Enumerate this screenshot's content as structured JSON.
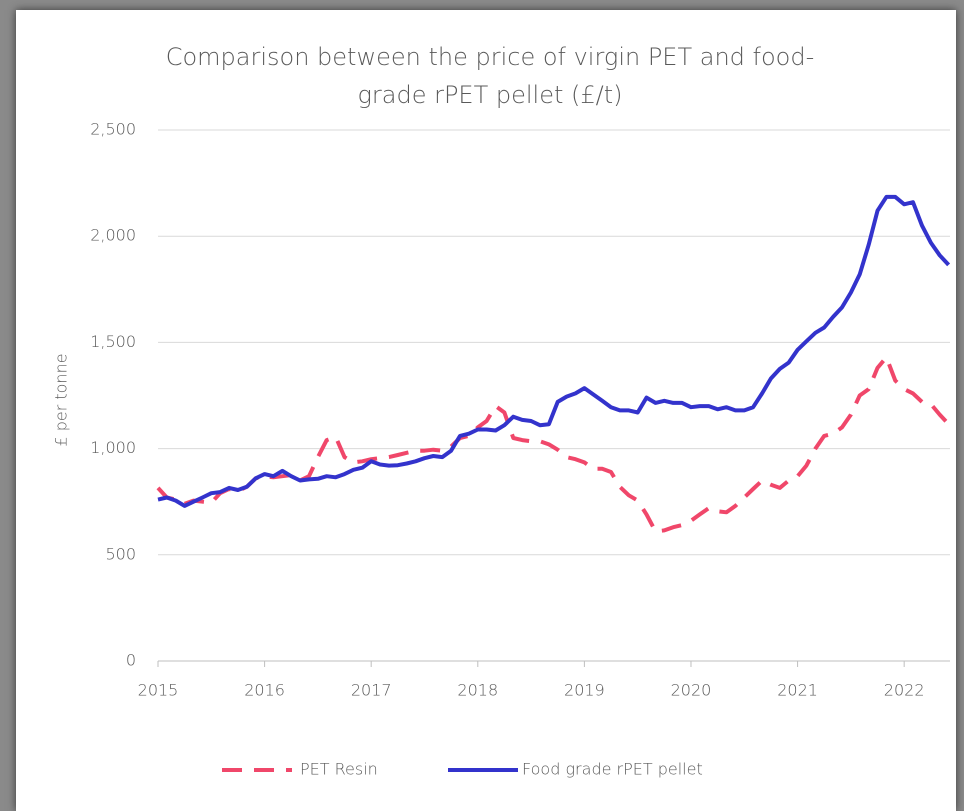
{
  "chart_data": {
    "type": "line",
    "title": [
      "Comparison between the price of virgin PET and food-",
      "grade rPET pellet (£/t)"
    ],
    "y_label": "£ per tonne",
    "x": [
      2015,
      2015.083,
      2015.167,
      2015.25,
      2015.333,
      2015.417,
      2015.5,
      2015.583,
      2015.667,
      2015.75,
      2015.833,
      2015.917,
      2016,
      2016.083,
      2016.167,
      2016.25,
      2016.333,
      2016.417,
      2016.5,
      2016.583,
      2016.667,
      2016.75,
      2016.833,
      2016.917,
      2017,
      2017.083,
      2017.167,
      2017.25,
      2017.333,
      2017.417,
      2017.5,
      2017.583,
      2017.667,
      2017.75,
      2017.833,
      2017.917,
      2018,
      2018.083,
      2018.167,
      2018.25,
      2018.333,
      2018.417,
      2018.5,
      2018.583,
      2018.667,
      2018.75,
      2018.833,
      2018.917,
      2019,
      2019.083,
      2019.167,
      2019.25,
      2019.333,
      2019.417,
      2019.5,
      2019.583,
      2019.667,
      2019.75,
      2019.833,
      2019.917,
      2020,
      2020.083,
      2020.167,
      2020.25,
      2020.333,
      2020.417,
      2020.5,
      2020.583,
      2020.667,
      2020.75,
      2020.833,
      2020.917,
      2021,
      2021.083,
      2021.167,
      2021.25,
      2021.333,
      2021.417,
      2021.5,
      2021.583,
      2021.667,
      2021.75,
      2021.833,
      2021.917,
      2022,
      2022.083,
      2022.167,
      2022.25,
      2022.333,
      2022.417
    ],
    "series": [
      {
        "name": "PET Resin",
        "color": "#f0476a",
        "dashed": true,
        "values": [
          815,
          770,
          760,
          740,
          755,
          750,
          745,
          790,
          810,
          800,
          820,
          860,
          870,
          865,
          870,
          875,
          850,
          870,
          960,
          1040,
          1055,
          960,
          935,
          940,
          950,
          955,
          960,
          970,
          980,
          990,
          990,
          995,
          990,
          1010,
          1050,
          1060,
          1100,
          1130,
          1200,
          1170,
          1050,
          1040,
          1035,
          1035,
          1020,
          995,
          960,
          950,
          935,
          905,
          905,
          890,
          820,
          780,
          755,
          690,
          610,
          615,
          630,
          640,
          660,
          690,
          720,
          705,
          700,
          730,
          770,
          810,
          850,
          830,
          815,
          850,
          870,
          920,
          1000,
          1060,
          1070,
          1100,
          1160,
          1250,
          1280,
          1380,
          1430,
          1320,
          1280,
          1260,
          1220,
          1210,
          1160,
          1115
        ]
      },
      {
        "name": "Food grade rPET pellet",
        "color": "#3333cc",
        "dashed": false,
        "values": [
          760,
          770,
          755,
          730,
          750,
          770,
          790,
          795,
          815,
          805,
          820,
          860,
          880,
          870,
          895,
          870,
          850,
          855,
          858,
          870,
          865,
          880,
          900,
          910,
          940,
          925,
          920,
          922,
          930,
          940,
          955,
          965,
          960,
          990,
          1060,
          1070,
          1090,
          1090,
          1085,
          1110,
          1150,
          1135,
          1130,
          1110,
          1115,
          1220,
          1245,
          1260,
          1285,
          1255,
          1225,
          1195,
          1180,
          1180,
          1170,
          1240,
          1215,
          1225,
          1215,
          1215,
          1195,
          1200,
          1200,
          1185,
          1195,
          1180,
          1180,
          1195,
          1260,
          1330,
          1375,
          1405,
          1465,
          1505,
          1545,
          1570,
          1620,
          1665,
          1735,
          1820,
          1960,
          2120,
          2185,
          2185,
          2150,
          2160,
          2050,
          1970,
          1910,
          1865
        ]
      }
    ],
    "xlim": [
      2015,
      2022.43
    ],
    "xticks": [
      2015,
      2016,
      2017,
      2018,
      2019,
      2020,
      2021,
      2022
    ],
    "ylim": [
      0,
      2500
    ],
    "yticks": [
      0,
      500,
      {
        "value": 1000,
        "label": "1,000"
      },
      {
        "value": 1500,
        "label": "1,500"
      },
      {
        "value": 2000,
        "label": "2,000"
      },
      {
        "value": 2500,
        "label": "2,500"
      }
    ],
    "grid": true,
    "legend": "bottom"
  }
}
